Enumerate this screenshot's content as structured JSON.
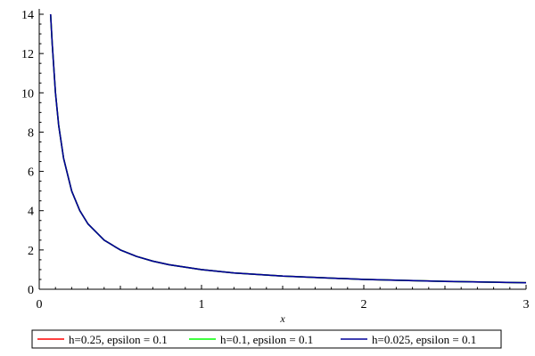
{
  "chart_data": {
    "type": "line",
    "title": "",
    "xlabel": "x",
    "ylabel": "",
    "xlim": [
      0,
      3
    ],
    "ylim": [
      0,
      14
    ],
    "grid": false,
    "legend_position": "bottom",
    "x_ticks": [
      0,
      1,
      2,
      3
    ],
    "x_tick_labels": [
      "0",
      "1",
      "2",
      "3"
    ],
    "y_ticks": [
      0,
      2,
      4,
      6,
      8,
      10,
      12,
      14
    ],
    "y_tick_labels": [
      "0",
      "2",
      "4",
      "6",
      "8",
      "10",
      "12",
      "14"
    ],
    "series": [
      {
        "name": "h=0.25, epsilon = 0.1",
        "color": "#ff0000",
        "x": [
          0.07,
          0.08,
          0.1,
          0.12,
          0.15,
          0.2,
          0.25,
          0.3,
          0.4,
          0.5,
          0.6,
          0.7,
          0.8,
          1.0,
          1.2,
          1.5,
          2.0,
          2.5,
          3.0
        ],
        "y": [
          14.29,
          12.5,
          10.0,
          8.33,
          6.67,
          5.0,
          4.0,
          3.33,
          2.5,
          2.0,
          1.67,
          1.43,
          1.25,
          1.0,
          0.83,
          0.67,
          0.5,
          0.4,
          0.33
        ]
      },
      {
        "name": "h=0.1, epsilon = 0.1",
        "color": "#00ff00",
        "x": [
          0.07,
          0.08,
          0.1,
          0.12,
          0.15,
          0.2,
          0.25,
          0.3,
          0.4,
          0.5,
          0.6,
          0.7,
          0.8,
          1.0,
          1.2,
          1.5,
          2.0,
          2.5,
          3.0
        ],
        "y": [
          14.29,
          12.5,
          10.0,
          8.33,
          6.67,
          5.0,
          4.0,
          3.33,
          2.5,
          2.0,
          1.67,
          1.43,
          1.25,
          1.0,
          0.83,
          0.67,
          0.5,
          0.4,
          0.33
        ]
      },
      {
        "name": "h=0.025, epsilon = 0.1",
        "color": "#000099",
        "x": [
          0.07,
          0.08,
          0.1,
          0.12,
          0.15,
          0.2,
          0.25,
          0.3,
          0.4,
          0.5,
          0.6,
          0.7,
          0.8,
          1.0,
          1.2,
          1.5,
          2.0,
          2.5,
          3.0
        ],
        "y": [
          14.29,
          12.5,
          10.0,
          8.33,
          6.67,
          5.0,
          4.0,
          3.33,
          2.5,
          2.0,
          1.67,
          1.43,
          1.25,
          1.0,
          0.83,
          0.67,
          0.5,
          0.4,
          0.33
        ]
      }
    ]
  }
}
